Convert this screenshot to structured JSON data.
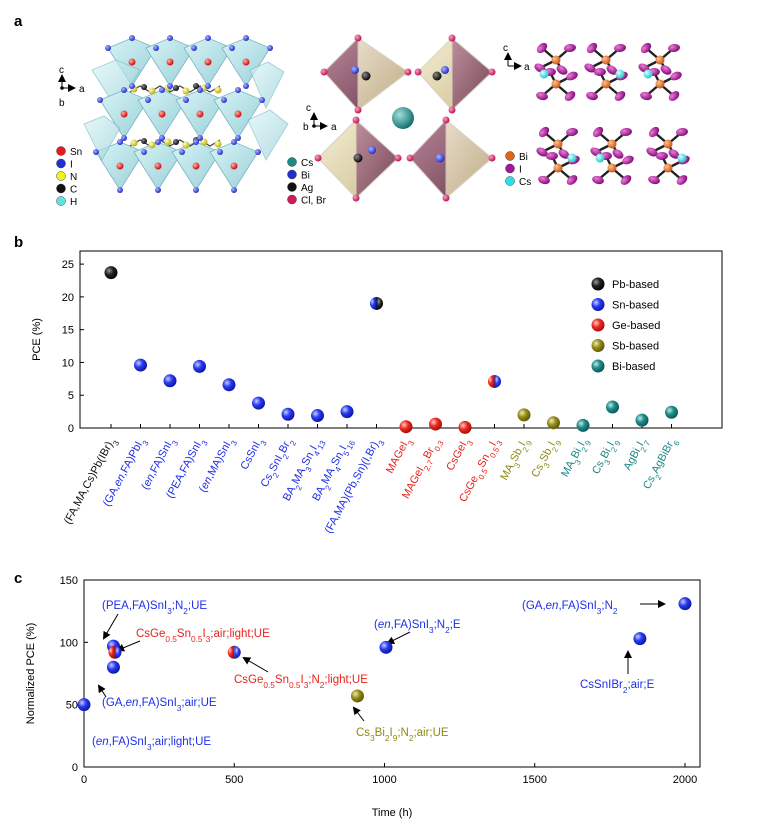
{
  "panel_a": {
    "label": "a",
    "structure1": {
      "axes": {
        "vertical": "c",
        "horizontal": "a",
        "depth": "b"
      },
      "legend": [
        {
          "name": "Sn",
          "color": "#e8191d"
        },
        {
          "name": "I",
          "color": "#1f2fd4"
        },
        {
          "name": "N",
          "color": "#f2f21a"
        },
        {
          "name": "C",
          "color": "#111111"
        },
        {
          "name": "H",
          "color": "#5fe3e0"
        }
      ]
    },
    "structure2": {
      "axes": {
        "vertical": "c",
        "horizontal": "a",
        "depth": "b"
      },
      "legend": [
        {
          "name": "Cs",
          "color": "#1a8a86"
        },
        {
          "name": "Bi",
          "color": "#1f2fd4"
        },
        {
          "name": "Ag",
          "color": "#111111"
        },
        {
          "name": "Cl, Br",
          "color": "#d4185e"
        }
      ]
    },
    "structure3": {
      "axes": {
        "vertical": "c",
        "horizontal": "a"
      },
      "legend": [
        {
          "name": "Bi",
          "color": "#e0651a"
        },
        {
          "name": "I",
          "color": "#a2169e"
        },
        {
          "name": "Cs",
          "color": "#28e0e6"
        }
      ]
    }
  },
  "colors": {
    "Pb": "#111111",
    "Sn": "#1f2fe6",
    "Ge": "#e6241e",
    "Sb": "#8f8a14",
    "Bi": "#1e8686"
  },
  "chart_data": [
    {
      "panel_label": "b",
      "type": "scatter",
      "ylabel": "PCE (%)",
      "xlabel": "",
      "ylim": [
        0,
        27
      ],
      "yticks": [
        0,
        5,
        10,
        15,
        20,
        25
      ],
      "legend": [
        {
          "label": "Pb-based",
          "group": "Pb"
        },
        {
          "label": "Sn-based",
          "group": "Sn"
        },
        {
          "label": "Ge-based",
          "group": "Ge"
        },
        {
          "label": "Sb-based",
          "group": "Sb"
        },
        {
          "label": "Bi-based",
          "group": "Bi"
        }
      ],
      "points": [
        {
          "label": "(FA,MA,Cs)Pb(IBr)3",
          "value": 23.7,
          "group": "Pb"
        },
        {
          "label": "(GA,en,FA)PbI3",
          "value": 9.6,
          "group": "Sn"
        },
        {
          "label": "(en,FA)SnI3",
          "value": 7.2,
          "group": "Sn"
        },
        {
          "label": "(PEA,FA)SnI3",
          "value": 9.4,
          "group": "Sn"
        },
        {
          "label": "(en,MA)SnI3",
          "value": 6.6,
          "group": "Sn"
        },
        {
          "label": "CsSnI3",
          "value": 3.8,
          "group": "Sn"
        },
        {
          "label": "Cs2SnI2Br2",
          "value": 2.1,
          "group": "Sn"
        },
        {
          "label": "BA2MA3Sn4I13",
          "value": 1.9,
          "group": "Sn"
        },
        {
          "label": "BA2MA4Sn5I16",
          "value": 2.5,
          "group": "Sn"
        },
        {
          "label": "(FA,MA)(Pb,Sn)(I,Br)3",
          "value": 19.0,
          "group": "Sn",
          "group2": "Pb"
        },
        {
          "label": "MAGeI3",
          "value": 0.2,
          "group": "Ge"
        },
        {
          "label": "MAGeI2.7Br0.3",
          "value": 0.6,
          "group": "Ge"
        },
        {
          "label": "CsGeI3",
          "value": 0.1,
          "group": "Ge"
        },
        {
          "label": "CsGe0.5Sn0.5I3",
          "value": 7.1,
          "group": "Ge",
          "group2": "Sn"
        },
        {
          "label": "MA3Sb2I9",
          "value": 2.0,
          "group": "Sb"
        },
        {
          "label": "Cs3Sb2I9",
          "value": 0.8,
          "group": "Sb"
        },
        {
          "label": "MA3Bi2I9",
          "value": 0.4,
          "group": "Bi"
        },
        {
          "label": "Cs3Bi2I9",
          "value": 3.2,
          "group": "Bi"
        },
        {
          "label": "AgBi2I7",
          "value": 1.2,
          "group": "Bi"
        },
        {
          "label": "Cs2AgBiBr6",
          "value": 2.4,
          "group": "Bi"
        }
      ],
      "tick_labels": [
        {
          "parts": [
            [
              "(FA,MA,Cs)Pb(IBr)",
              ""
            ],
            [
              "3",
              "sub"
            ]
          ]
        },
        {
          "parts": [
            [
              "(GA,",
              ""
            ],
            [
              "en",
              "it"
            ],
            [
              ",FA)PbI",
              ""
            ],
            [
              "3",
              "sub"
            ]
          ]
        },
        {
          "parts": [
            [
              "(",
              ""
            ],
            [
              "en",
              "it"
            ],
            [
              ",FA)SnI",
              ""
            ],
            [
              "3",
              "sub"
            ]
          ]
        },
        {
          "parts": [
            [
              "(PEA,FA)SnI",
              ""
            ],
            [
              "3",
              "sub"
            ]
          ]
        },
        {
          "parts": [
            [
              "(",
              ""
            ],
            [
              "en",
              "it"
            ],
            [
              ",MA)SnI",
              ""
            ],
            [
              "3",
              "sub"
            ]
          ]
        },
        {
          "parts": [
            [
              "CsSnI",
              ""
            ],
            [
              "3",
              "sub"
            ]
          ]
        },
        {
          "parts": [
            [
              "Cs",
              ""
            ],
            [
              "2",
              "sub"
            ],
            [
              "SnI",
              ""
            ],
            [
              "2",
              "sub"
            ],
            [
              "Br",
              ""
            ],
            [
              "2",
              "sub"
            ]
          ]
        },
        {
          "parts": [
            [
              "BA",
              ""
            ],
            [
              "2",
              "sub"
            ],
            [
              "MA",
              ""
            ],
            [
              "3",
              "sub"
            ],
            [
              "Sn",
              ""
            ],
            [
              "4",
              "sub"
            ],
            [
              "I",
              ""
            ],
            [
              "13",
              "sub"
            ]
          ]
        },
        {
          "parts": [
            [
              "BA",
              ""
            ],
            [
              "2",
              "sub"
            ],
            [
              "MA",
              ""
            ],
            [
              "4",
              "sub"
            ],
            [
              "Sn",
              ""
            ],
            [
              "5",
              "sub"
            ],
            [
              "I",
              ""
            ],
            [
              "16",
              "sub"
            ]
          ]
        },
        {
          "parts": [
            [
              "(FA,MA)(Pb,Sn)(I,Br)",
              ""
            ],
            [
              "3",
              "sub"
            ]
          ]
        },
        {
          "parts": [
            [
              "MAGeI",
              ""
            ],
            [
              "3",
              "sub"
            ]
          ]
        },
        {
          "parts": [
            [
              "MAGeI",
              ""
            ],
            [
              "2.7",
              "sub"
            ],
            [
              "Br",
              ""
            ],
            [
              "0.3",
              "sub"
            ]
          ]
        },
        {
          "parts": [
            [
              "CsGeI",
              ""
            ],
            [
              "3",
              "sub"
            ]
          ]
        },
        {
          "parts": [
            [
              "CsGe",
              ""
            ],
            [
              "0.5",
              "sub"
            ],
            [
              "Sn",
              ""
            ],
            [
              "0.5",
              "sub"
            ],
            [
              "I",
              ""
            ],
            [
              "3",
              "sub"
            ]
          ]
        },
        {
          "parts": [
            [
              "MA",
              ""
            ],
            [
              "3",
              "sub"
            ],
            [
              "Sb",
              ""
            ],
            [
              "2",
              "sub"
            ],
            [
              "I",
              ""
            ],
            [
              "9",
              "sub"
            ]
          ]
        },
        {
          "parts": [
            [
              "Cs",
              ""
            ],
            [
              "3",
              "sub"
            ],
            [
              "Sb",
              ""
            ],
            [
              "2",
              "sub"
            ],
            [
              "I",
              ""
            ],
            [
              "9",
              "sub"
            ]
          ]
        },
        {
          "parts": [
            [
              "MA",
              ""
            ],
            [
              "3",
              "sub"
            ],
            [
              "Bi",
              ""
            ],
            [
              "2",
              "sub"
            ],
            [
              "I",
              ""
            ],
            [
              "9",
              "sub"
            ]
          ]
        },
        {
          "parts": [
            [
              "Cs",
              ""
            ],
            [
              "3",
              "sub"
            ],
            [
              "Bi",
              ""
            ],
            [
              "2",
              "sub"
            ],
            [
              "I",
              ""
            ],
            [
              "9",
              "sub"
            ]
          ]
        },
        {
          "parts": [
            [
              "AgBi",
              ""
            ],
            [
              "2",
              "sub"
            ],
            [
              "I",
              ""
            ],
            [
              "7",
              "sub"
            ]
          ]
        },
        {
          "parts": [
            [
              "Cs",
              ""
            ],
            [
              "2",
              "sub"
            ],
            [
              "AgBiBr",
              ""
            ],
            [
              "6",
              "sub"
            ]
          ]
        }
      ]
    },
    {
      "panel_label": "c",
      "type": "scatter",
      "xlabel": "Time (h)",
      "ylabel": "Normalized PCE (%)",
      "xlim": [
        0,
        2050
      ],
      "ylim": [
        0,
        150
      ],
      "xticks": [
        0,
        500,
        1000,
        1500,
        2000
      ],
      "yticks": [
        0,
        50,
        100,
        150
      ],
      "points": [
        {
          "x": 0,
          "y": 50,
          "group": "Sn",
          "label": "(en,FA)SnI3;air;light;UE",
          "parts": [
            [
              "(",
              ""
            ],
            [
              "en",
              "it"
            ],
            [
              ",FA)SnI",
              ""
            ],
            [
              "3",
              "sub"
            ],
            [
              ";air;light;UE",
              ""
            ]
          ]
        },
        {
          "x": 98,
          "y": 97,
          "group": "Sn",
          "label": "(PEA,FA)SnI3;N2;UE",
          "parts": [
            [
              "(PEA,FA)SnI",
              ""
            ],
            [
              "3",
              "sub"
            ],
            [
              ";N",
              ""
            ],
            [
              "2",
              "sub"
            ],
            [
              ";UE",
              ""
            ]
          ]
        },
        {
          "x": 103,
          "y": 92,
          "group": "Ge",
          "group2": "Sn",
          "label": "CsGe0.5Sn0.5I3;air;light;UE",
          "parts": [
            [
              "CsGe",
              ""
            ],
            [
              "0.5",
              "sub"
            ],
            [
              "Sn",
              ""
            ],
            [
              "0.5",
              "sub"
            ],
            [
              "I",
              ""
            ],
            [
              "3",
              "sub"
            ],
            [
              ";air;light;UE",
              ""
            ]
          ]
        },
        {
          "x": 98,
          "y": 80,
          "group": "Sn",
          "label": "(GA,en,FA)SnI3;air;UE",
          "parts": [
            [
              "(GA,",
              ""
            ],
            [
              "en",
              "it"
            ],
            [
              ",FA)SnI",
              ""
            ],
            [
              "3",
              "sub"
            ],
            [
              ";air;UE",
              ""
            ]
          ]
        },
        {
          "x": 500,
          "y": 92,
          "group": "Ge",
          "group2": "Sn",
          "label": "CsGe0.5Sn0.5I3;N2;light;UE",
          "parts": [
            [
              "CsGe",
              ""
            ],
            [
              "0.5",
              "sub"
            ],
            [
              "Sn",
              ""
            ],
            [
              "0.5",
              "sub"
            ],
            [
              "I",
              ""
            ],
            [
              "3",
              "sub"
            ],
            [
              ";N",
              ""
            ],
            [
              "2",
              "sub"
            ],
            [
              ";light;UE",
              ""
            ]
          ]
        },
        {
          "x": 910,
          "y": 57,
          "group": "Sb",
          "label": "Cs3Bi2I9;N2;air;UE",
          "parts": [
            [
              "Cs",
              ""
            ],
            [
              "3",
              "sub"
            ],
            [
              "Bi",
              ""
            ],
            [
              "2",
              "sub"
            ],
            [
              "I",
              ""
            ],
            [
              "9",
              "sub"
            ],
            [
              ";N",
              ""
            ],
            [
              "2",
              "sub"
            ],
            [
              ";air;UE",
              ""
            ]
          ]
        },
        {
          "x": 1005,
          "y": 96,
          "group": "Sn",
          "label": "(en,FA)SnI3;N2;E",
          "parts": [
            [
              "(",
              ""
            ],
            [
              "en",
              "it"
            ],
            [
              ",FA)SnI",
              ""
            ],
            [
              "3",
              "sub"
            ],
            [
              ";N",
              ""
            ],
            [
              "2",
              "sub"
            ],
            [
              ";E",
              ""
            ]
          ]
        },
        {
          "x": 1850,
          "y": 103,
          "group": "Sn",
          "label": "CsSnIBr2;air;E",
          "parts": [
            [
              "CsSnIBr",
              ""
            ],
            [
              "2",
              "sub"
            ],
            [
              ";air;E",
              ""
            ]
          ]
        },
        {
          "x": 2000,
          "y": 131,
          "group": "Sn",
          "label": "(GA,en,FA)SnI3;N2",
          "parts": [
            [
              "(GA,",
              ""
            ],
            [
              "en",
              "it"
            ],
            [
              ",FA)SnI",
              ""
            ],
            [
              "3",
              "sub"
            ],
            [
              ";N",
              ""
            ],
            [
              "2",
              "sub"
            ]
          ]
        }
      ]
    }
  ]
}
